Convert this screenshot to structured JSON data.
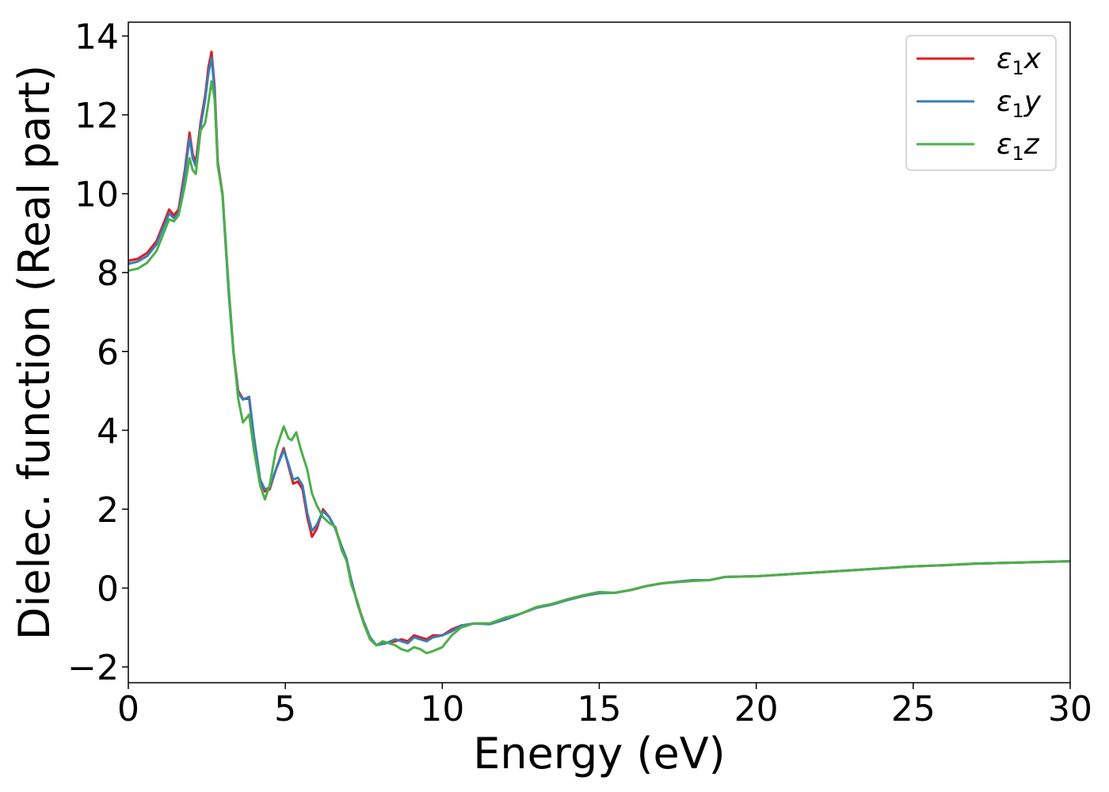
{
  "chart_data": {
    "type": "line",
    "title": "",
    "xlabel": "Energy (eV)",
    "ylabel": "Dielec. function (Real part)",
    "xlim": [
      0,
      30
    ],
    "ylim": [
      -2.4,
      14.35
    ],
    "xticks": [
      0,
      5,
      10,
      15,
      20,
      25,
      30
    ],
    "xtick_labels": [
      "0",
      "5",
      "10",
      "15",
      "20",
      "25",
      "30"
    ],
    "yticks": [
      -2,
      0,
      2,
      4,
      6,
      8,
      10,
      12,
      14
    ],
    "ytick_labels": [
      "−2",
      "0",
      "2",
      "4",
      "6",
      "8",
      "10",
      "12",
      "14"
    ],
    "grid": false,
    "legend_position": "top-right",
    "series": [
      {
        "name": "ε₁x",
        "legend_base": "ε",
        "legend_sub": "1",
        "legend_var": "x",
        "color": "#e41a1c",
        "points": [
          [
            0,
            8.3
          ],
          [
            0.3,
            8.35
          ],
          [
            0.6,
            8.5
          ],
          [
            0.9,
            8.8
          ],
          [
            1.1,
            9.2
          ],
          [
            1.3,
            9.6
          ],
          [
            1.45,
            9.45
          ],
          [
            1.6,
            9.6
          ],
          [
            1.8,
            10.6
          ],
          [
            1.95,
            11.55
          ],
          [
            2.05,
            11.0
          ],
          [
            2.15,
            10.8
          ],
          [
            2.3,
            11.8
          ],
          [
            2.45,
            12.5
          ],
          [
            2.55,
            13.2
          ],
          [
            2.65,
            13.6
          ],
          [
            2.75,
            12.7
          ],
          [
            2.85,
            10.8
          ],
          [
            3.0,
            10.0
          ],
          [
            3.2,
            7.5
          ],
          [
            3.35,
            6.0
          ],
          [
            3.5,
            5.0
          ],
          [
            3.65,
            4.8
          ],
          [
            3.85,
            4.8
          ],
          [
            4.0,
            3.8
          ],
          [
            4.2,
            2.7
          ],
          [
            4.35,
            2.45
          ],
          [
            4.5,
            2.5
          ],
          [
            4.7,
            3.0
          ],
          [
            4.95,
            3.55
          ],
          [
            5.1,
            3.1
          ],
          [
            5.25,
            2.65
          ],
          [
            5.4,
            2.7
          ],
          [
            5.55,
            2.5
          ],
          [
            5.7,
            1.8
          ],
          [
            5.85,
            1.3
          ],
          [
            6.0,
            1.5
          ],
          [
            6.2,
            2.0
          ],
          [
            6.4,
            1.8
          ],
          [
            6.6,
            1.5
          ],
          [
            6.8,
            1.0
          ],
          [
            6.95,
            0.7
          ],
          [
            7.1,
            0.2
          ],
          [
            7.3,
            -0.4
          ],
          [
            7.5,
            -0.9
          ],
          [
            7.7,
            -1.3
          ],
          [
            7.9,
            -1.45
          ],
          [
            8.2,
            -1.4
          ],
          [
            8.5,
            -1.35
          ],
          [
            8.7,
            -1.3
          ],
          [
            8.9,
            -1.35
          ],
          [
            9.1,
            -1.2
          ],
          [
            9.3,
            -1.25
          ],
          [
            9.5,
            -1.3
          ],
          [
            9.7,
            -1.2
          ],
          [
            10.0,
            -1.2
          ],
          [
            10.3,
            -1.05
          ],
          [
            10.6,
            -0.95
          ],
          [
            11.0,
            -0.9
          ],
          [
            11.5,
            -0.9
          ],
          [
            12.0,
            -0.8
          ],
          [
            12.5,
            -0.65
          ],
          [
            13.0,
            -0.5
          ],
          [
            13.5,
            -0.4
          ],
          [
            14.0,
            -0.3
          ],
          [
            14.5,
            -0.2
          ],
          [
            15.0,
            -0.12
          ],
          [
            15.5,
            -0.12
          ],
          [
            16.0,
            -0.05
          ],
          [
            16.5,
            0.05
          ],
          [
            17.0,
            0.12
          ],
          [
            18.0,
            0.2
          ],
          [
            18.5,
            0.2
          ],
          [
            19.0,
            0.28
          ],
          [
            20.0,
            0.3
          ],
          [
            21.0,
            0.35
          ],
          [
            22.0,
            0.4
          ],
          [
            23.0,
            0.45
          ],
          [
            24.0,
            0.5
          ],
          [
            25.0,
            0.55
          ],
          [
            26.0,
            0.58
          ],
          [
            27.0,
            0.62
          ],
          [
            28.0,
            0.64
          ],
          [
            29.0,
            0.66
          ],
          [
            30.0,
            0.68
          ]
        ]
      },
      {
        "name": "ε₁y",
        "legend_base": "ε",
        "legend_sub": "1",
        "legend_var": "y",
        "color": "#377eb8",
        "points": [
          [
            0,
            8.22
          ],
          [
            0.3,
            8.28
          ],
          [
            0.6,
            8.42
          ],
          [
            0.9,
            8.72
          ],
          [
            1.1,
            9.12
          ],
          [
            1.3,
            9.5
          ],
          [
            1.45,
            9.38
          ],
          [
            1.6,
            9.5
          ],
          [
            1.8,
            10.5
          ],
          [
            1.95,
            11.42
          ],
          [
            2.05,
            10.9
          ],
          [
            2.15,
            10.7
          ],
          [
            2.3,
            11.7
          ],
          [
            2.45,
            12.4
          ],
          [
            2.55,
            13.05
          ],
          [
            2.65,
            13.45
          ],
          [
            2.75,
            12.6
          ],
          [
            2.85,
            10.75
          ],
          [
            3.0,
            9.95
          ],
          [
            3.2,
            7.45
          ],
          [
            3.35,
            5.95
          ],
          [
            3.5,
            4.95
          ],
          [
            3.65,
            4.78
          ],
          [
            3.85,
            4.85
          ],
          [
            4.0,
            3.85
          ],
          [
            4.2,
            2.75
          ],
          [
            4.35,
            2.5
          ],
          [
            4.5,
            2.55
          ],
          [
            4.7,
            3.0
          ],
          [
            4.95,
            3.5
          ],
          [
            5.1,
            3.15
          ],
          [
            5.25,
            2.75
          ],
          [
            5.4,
            2.8
          ],
          [
            5.55,
            2.6
          ],
          [
            5.7,
            1.9
          ],
          [
            5.85,
            1.45
          ],
          [
            6.0,
            1.6
          ],
          [
            6.2,
            1.95
          ],
          [
            6.4,
            1.8
          ],
          [
            6.6,
            1.5
          ],
          [
            6.8,
            1.05
          ],
          [
            6.95,
            0.75
          ],
          [
            7.1,
            0.2
          ],
          [
            7.3,
            -0.4
          ],
          [
            7.5,
            -0.85
          ],
          [
            7.7,
            -1.25
          ],
          [
            7.9,
            -1.45
          ],
          [
            8.2,
            -1.4
          ],
          [
            8.5,
            -1.3
          ],
          [
            8.7,
            -1.35
          ],
          [
            8.9,
            -1.4
          ],
          [
            9.1,
            -1.25
          ],
          [
            9.3,
            -1.3
          ],
          [
            9.5,
            -1.35
          ],
          [
            9.7,
            -1.25
          ],
          [
            10.0,
            -1.2
          ],
          [
            10.3,
            -1.1
          ],
          [
            10.6,
            -0.95
          ],
          [
            11.0,
            -0.9
          ],
          [
            11.5,
            -0.92
          ],
          [
            12.0,
            -0.8
          ],
          [
            12.5,
            -0.65
          ],
          [
            13.0,
            -0.5
          ],
          [
            13.5,
            -0.42
          ],
          [
            14.0,
            -0.3
          ],
          [
            14.5,
            -0.2
          ],
          [
            15.0,
            -0.13
          ],
          [
            15.5,
            -0.12
          ],
          [
            16.0,
            -0.05
          ],
          [
            16.5,
            0.05
          ],
          [
            17.0,
            0.12
          ],
          [
            18.0,
            0.2
          ],
          [
            18.5,
            0.2
          ],
          [
            19.0,
            0.28
          ],
          [
            20.0,
            0.3
          ],
          [
            21.0,
            0.35
          ],
          [
            22.0,
            0.4
          ],
          [
            23.0,
            0.45
          ],
          [
            24.0,
            0.5
          ],
          [
            25.0,
            0.55
          ],
          [
            26.0,
            0.58
          ],
          [
            27.0,
            0.62
          ],
          [
            28.0,
            0.64
          ],
          [
            29.0,
            0.66
          ],
          [
            30.0,
            0.68
          ]
        ]
      },
      {
        "name": "ε₁z",
        "legend_base": "ε",
        "legend_sub": "1",
        "legend_var": "z",
        "color": "#4daf4a",
        "points": [
          [
            0,
            8.05
          ],
          [
            0.3,
            8.1
          ],
          [
            0.6,
            8.25
          ],
          [
            0.9,
            8.55
          ],
          [
            1.1,
            8.95
          ],
          [
            1.3,
            9.35
          ],
          [
            1.45,
            9.3
          ],
          [
            1.6,
            9.45
          ],
          [
            1.8,
            10.2
          ],
          [
            1.95,
            10.9
          ],
          [
            2.05,
            10.6
          ],
          [
            2.15,
            10.5
          ],
          [
            2.3,
            11.6
          ],
          [
            2.45,
            11.8
          ],
          [
            2.55,
            12.3
          ],
          [
            2.65,
            12.85
          ],
          [
            2.75,
            12.4
          ],
          [
            2.85,
            10.7
          ],
          [
            3.0,
            10.0
          ],
          [
            3.2,
            7.6
          ],
          [
            3.35,
            6.0
          ],
          [
            3.5,
            4.8
          ],
          [
            3.65,
            4.2
          ],
          [
            3.85,
            4.4
          ],
          [
            4.0,
            3.5
          ],
          [
            4.2,
            2.6
          ],
          [
            4.35,
            2.25
          ],
          [
            4.5,
            2.6
          ],
          [
            4.7,
            3.5
          ],
          [
            4.95,
            4.1
          ],
          [
            5.1,
            3.8
          ],
          [
            5.2,
            3.75
          ],
          [
            5.35,
            3.95
          ],
          [
            5.5,
            3.5
          ],
          [
            5.7,
            3.0
          ],
          [
            5.85,
            2.4
          ],
          [
            6.0,
            2.1
          ],
          [
            6.2,
            1.8
          ],
          [
            6.4,
            1.65
          ],
          [
            6.6,
            1.55
          ],
          [
            6.8,
            0.95
          ],
          [
            6.95,
            0.7
          ],
          [
            7.1,
            0.1
          ],
          [
            7.3,
            -0.35
          ],
          [
            7.5,
            -0.9
          ],
          [
            7.7,
            -1.3
          ],
          [
            7.9,
            -1.45
          ],
          [
            8.1,
            -1.35
          ],
          [
            8.3,
            -1.4
          ],
          [
            8.5,
            -1.45
          ],
          [
            8.7,
            -1.55
          ],
          [
            8.9,
            -1.6
          ],
          [
            9.1,
            -1.5
          ],
          [
            9.3,
            -1.55
          ],
          [
            9.5,
            -1.65
          ],
          [
            9.7,
            -1.6
          ],
          [
            10.0,
            -1.5
          ],
          [
            10.3,
            -1.2
          ],
          [
            10.6,
            -1.0
          ],
          [
            11.0,
            -0.9
          ],
          [
            11.5,
            -0.9
          ],
          [
            12.0,
            -0.75
          ],
          [
            12.5,
            -0.65
          ],
          [
            13.0,
            -0.48
          ],
          [
            13.5,
            -0.4
          ],
          [
            14.0,
            -0.28
          ],
          [
            14.5,
            -0.18
          ],
          [
            15.0,
            -0.1
          ],
          [
            15.5,
            -0.12
          ],
          [
            16.0,
            -0.05
          ],
          [
            16.5,
            0.05
          ],
          [
            17.0,
            0.12
          ],
          [
            18.0,
            0.18
          ],
          [
            18.5,
            0.2
          ],
          [
            19.0,
            0.28
          ],
          [
            20.0,
            0.3
          ],
          [
            21.0,
            0.35
          ],
          [
            22.0,
            0.4
          ],
          [
            23.0,
            0.45
          ],
          [
            24.0,
            0.5
          ],
          [
            25.0,
            0.55
          ],
          [
            26.0,
            0.58
          ],
          [
            27.0,
            0.62
          ],
          [
            28.0,
            0.64
          ],
          [
            29.0,
            0.66
          ],
          [
            30.0,
            0.68
          ]
        ]
      }
    ]
  }
}
